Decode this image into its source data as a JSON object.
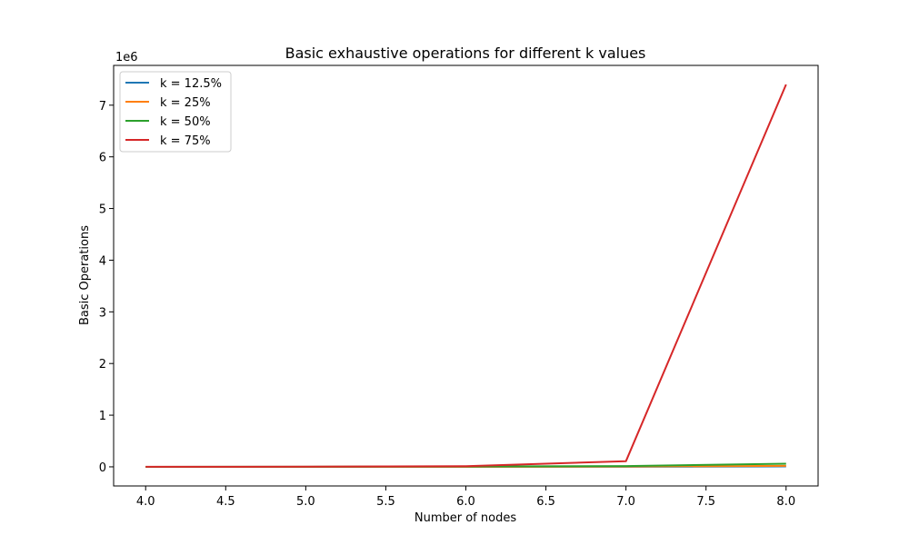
{
  "chart_data": {
    "type": "line",
    "title": "Basic exhaustive operations for different k values",
    "xlabel": "Number of nodes",
    "ylabel": "Basic Operations",
    "y_offset_label": "1e6",
    "xlim": [
      3.8,
      8.2
    ],
    "ylim": [
      -370000,
      7770000
    ],
    "x_ticks": [
      4.0,
      4.5,
      5.0,
      5.5,
      6.0,
      6.5,
      7.0,
      7.5,
      8.0
    ],
    "x_tick_labels": [
      "4.0",
      "4.5",
      "5.0",
      "5.5",
      "6.0",
      "6.5",
      "7.0",
      "7.5",
      "8.0"
    ],
    "y_ticks": [
      0,
      1000000,
      2000000,
      3000000,
      4000000,
      5000000,
      6000000,
      7000000
    ],
    "y_tick_labels": [
      "0",
      "1",
      "2",
      "3",
      "4",
      "5",
      "6",
      "7"
    ],
    "grid": false,
    "legend_position": "upper-left",
    "x": [
      4,
      5,
      6,
      7,
      8
    ],
    "series": [
      {
        "name": "k = 12.5%",
        "color": "#1f77b4",
        "values": [
          10,
          50,
          300,
          2000,
          8000
        ]
      },
      {
        "name": "k = 25%",
        "color": "#ff7f0e",
        "values": [
          50,
          300,
          2000,
          5000,
          20000
        ]
      },
      {
        "name": "k = 50%",
        "color": "#2ca02c",
        "values": [
          200,
          1500,
          8000,
          15000,
          60000
        ]
      },
      {
        "name": "k = 75%",
        "color": "#d62728",
        "values": [
          500,
          3000,
          12000,
          110000,
          7400000
        ]
      }
    ]
  }
}
